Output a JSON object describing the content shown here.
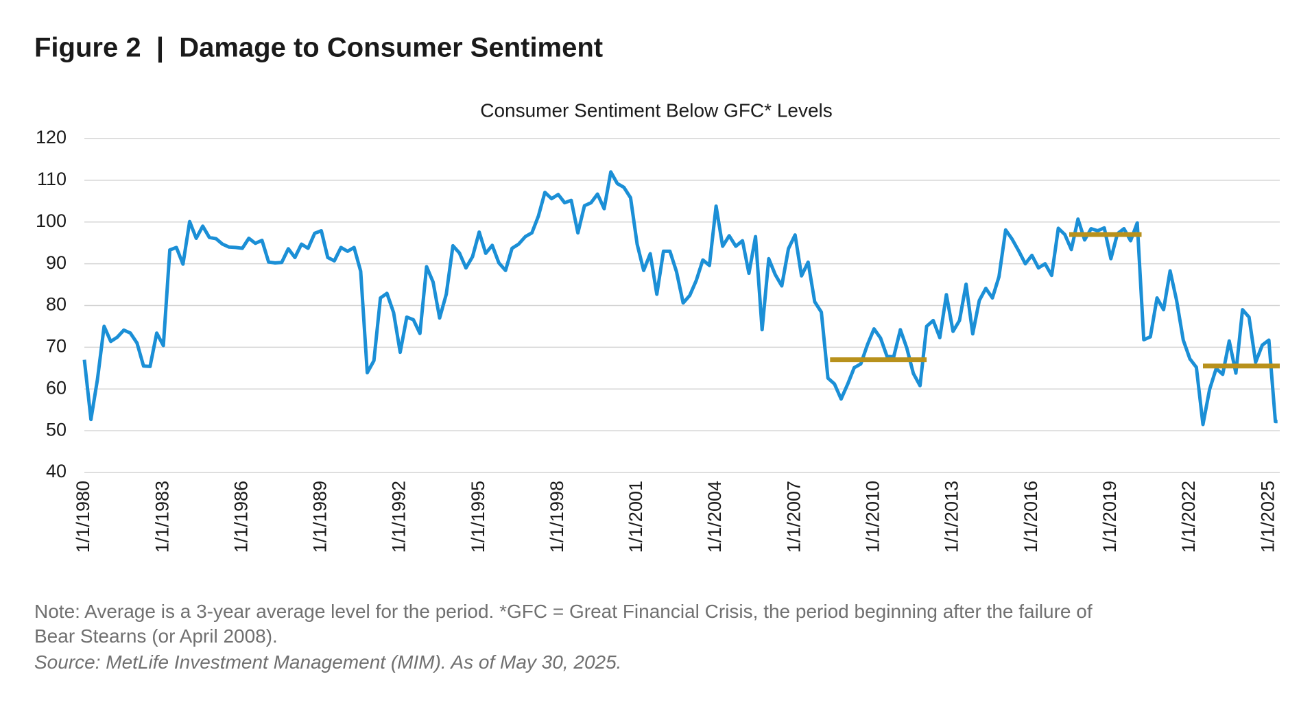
{
  "chart_data": {
    "type": "line",
    "heading": "Figure 2  |  Damage to Consumer Sentiment",
    "title": "Consumer Sentiment Below GFC* Levels",
    "notes": [
      "Note: Average is a 3-year average level for the period. *GFC = Great Financial Crisis, the period beginning after the failure of",
      "Bear Stearns (or April 2008)."
    ],
    "source": "Source: MetLife Investment Management (MIM). As of May 30, 2025.",
    "xlim": [
      "1980-01-01",
      "2025-06-01"
    ],
    "ylim": [
      40,
      120
    ],
    "yticks": [
      40,
      50,
      60,
      70,
      80,
      90,
      100,
      110,
      120
    ],
    "xticks": [
      {
        "value": "1980-01-01",
        "label": "1/1/1980"
      },
      {
        "value": "1983-01-01",
        "label": "1/1/1983"
      },
      {
        "value": "1986-01-01",
        "label": "1/1/1986"
      },
      {
        "value": "1989-01-01",
        "label": "1/1/1989"
      },
      {
        "value": "1992-01-01",
        "label": "1/1/1992"
      },
      {
        "value": "1995-01-01",
        "label": "1/1/1995"
      },
      {
        "value": "1998-01-01",
        "label": "1/1/1998"
      },
      {
        "value": "2001-01-01",
        "label": "1/1/2001"
      },
      {
        "value": "2004-01-01",
        "label": "1/1/2004"
      },
      {
        "value": "2007-01-01",
        "label": "1/1/2007"
      },
      {
        "value": "2010-01-01",
        "label": "1/1/2010"
      },
      {
        "value": "2013-01-01",
        "label": "1/1/2013"
      },
      {
        "value": "2016-01-01",
        "label": "1/1/2016"
      },
      {
        "value": "2019-01-01",
        "label": "1/1/2019"
      },
      {
        "value": "2022-01-01",
        "label": "1/1/2022"
      },
      {
        "value": "2025-01-01",
        "label": "1/1/2025"
      }
    ],
    "grid": true,
    "series": [
      {
        "color": "#1b8fd6",
        "x": [
          "1980-01-01",
          "1980-04-01",
          "1980-07-01",
          "1980-10-01",
          "1981-01-01",
          "1981-04-01",
          "1981-07-01",
          "1981-10-01",
          "1982-01-01",
          "1982-04-01",
          "1982-07-01",
          "1982-10-01",
          "1983-01-01",
          "1983-04-01",
          "1983-07-01",
          "1983-10-01",
          "1984-01-01",
          "1984-04-01",
          "1984-07-01",
          "1984-10-01",
          "1985-01-01",
          "1985-04-01",
          "1985-07-01",
          "1985-10-01",
          "1986-01-01",
          "1986-04-01",
          "1986-07-01",
          "1986-10-01",
          "1987-01-01",
          "1987-04-01",
          "1987-07-01",
          "1987-10-01",
          "1988-01-01",
          "1988-04-01",
          "1988-07-01",
          "1988-10-01",
          "1989-01-01",
          "1989-04-01",
          "1989-07-01",
          "1989-10-01",
          "1990-01-01",
          "1990-04-01",
          "1990-07-01",
          "1990-10-01",
          "1991-01-01",
          "1991-04-01",
          "1991-07-01",
          "1991-10-01",
          "1992-01-01",
          "1992-04-01",
          "1992-07-01",
          "1992-10-01",
          "1993-01-01",
          "1993-04-01",
          "1993-07-01",
          "1993-10-01",
          "1994-01-01",
          "1994-04-01",
          "1994-07-01",
          "1994-10-01",
          "1995-01-01",
          "1995-04-01",
          "1995-07-01",
          "1995-10-01",
          "1996-01-01",
          "1996-04-01",
          "1996-07-01",
          "1996-10-01",
          "1997-01-01",
          "1997-04-01",
          "1997-07-01",
          "1997-10-01",
          "1998-01-01",
          "1998-04-01",
          "1998-07-01",
          "1998-10-01",
          "1999-01-01",
          "1999-04-01",
          "1999-07-01",
          "1999-10-01",
          "2000-01-01",
          "2000-04-01",
          "2000-07-01",
          "2000-10-01",
          "2001-01-01",
          "2001-04-01",
          "2001-07-01",
          "2001-10-01",
          "2002-01-01",
          "2002-04-01",
          "2002-07-01",
          "2002-10-01",
          "2003-01-01",
          "2003-04-01",
          "2003-07-01",
          "2003-10-01",
          "2004-01-01",
          "2004-04-01",
          "2004-07-01",
          "2004-10-01",
          "2005-01-01",
          "2005-04-01",
          "2005-07-01",
          "2005-10-01",
          "2006-01-01",
          "2006-04-01",
          "2006-07-01",
          "2006-10-01",
          "2007-01-01",
          "2007-04-01",
          "2007-07-01",
          "2007-10-01",
          "2008-01-01",
          "2008-04-01",
          "2008-07-01",
          "2008-10-01",
          "2009-01-01",
          "2009-04-01",
          "2009-07-01",
          "2009-10-01",
          "2010-01-01",
          "2010-04-01",
          "2010-07-01",
          "2010-10-01",
          "2011-01-01",
          "2011-04-01",
          "2011-07-01",
          "2011-10-01",
          "2012-01-01",
          "2012-04-01",
          "2012-07-01",
          "2012-10-01",
          "2013-01-01",
          "2013-04-01",
          "2013-07-01",
          "2013-10-01",
          "2014-01-01",
          "2014-04-01",
          "2014-07-01",
          "2014-10-01",
          "2015-01-01",
          "2015-04-01",
          "2015-07-01",
          "2015-10-01",
          "2016-01-01",
          "2016-04-01",
          "2016-07-01",
          "2016-10-01",
          "2017-01-01",
          "2017-04-01",
          "2017-07-01",
          "2017-10-01",
          "2018-01-01",
          "2018-04-01",
          "2018-07-01",
          "2018-10-01",
          "2019-01-01",
          "2019-04-01",
          "2019-07-01",
          "2019-10-01",
          "2020-01-01",
          "2020-04-01",
          "2020-07-01",
          "2020-10-01",
          "2021-01-01",
          "2021-04-01",
          "2021-07-01",
          "2021-10-01",
          "2022-01-01",
          "2022-04-01",
          "2022-07-01",
          "2022-10-01",
          "2023-01-01",
          "2023-04-01",
          "2023-07-01",
          "2023-10-01",
          "2024-01-01",
          "2024-04-01",
          "2024-07-01",
          "2024-10-01",
          "2025-01-01",
          "2025-04-01",
          "2025-05-01"
        ],
        "values": [
          67.0,
          52.7,
          62.3,
          75.0,
          71.4,
          72.4,
          74.1,
          73.4,
          71.0,
          65.5,
          65.4,
          73.4,
          70.4,
          93.3,
          93.9,
          89.9,
          100.1,
          96.1,
          99.0,
          96.3,
          96.0,
          94.7,
          94.0,
          93.9,
          93.7,
          96.1,
          94.9,
          95.6,
          90.4,
          90.2,
          90.3,
          93.6,
          91.5,
          94.7,
          93.7,
          97.3,
          97.9,
          91.5,
          90.7,
          93.9,
          93.0,
          93.9,
          88.2,
          63.9,
          66.8,
          81.8,
          82.9,
          78.3,
          68.8,
          77.2,
          76.6,
          73.3,
          89.3,
          85.6,
          77.0,
          82.7,
          94.3,
          92.6,
          89.0,
          91.7,
          97.6,
          92.5,
          94.4,
          90.2,
          88.4,
          93.7,
          94.7,
          96.5,
          97.4,
          101.4,
          107.1,
          105.6,
          106.6,
          104.6,
          105.2,
          97.4,
          103.9,
          104.6,
          106.7,
          103.2,
          112.0,
          109.2,
          108.3,
          105.8,
          94.7,
          88.4,
          92.4,
          82.7,
          93.0,
          93.0,
          88.1,
          80.6,
          82.4,
          86.0,
          90.9,
          89.6,
          103.8,
          94.2,
          96.7,
          94.2,
          95.5,
          87.7,
          96.5,
          74.2,
          91.2,
          87.4,
          84.7,
          93.6,
          96.9,
          87.1,
          90.4,
          80.9,
          78.4,
          62.6,
          61.2,
          57.6,
          61.2,
          65.1,
          66.0,
          70.6,
          74.4,
          72.2,
          67.8,
          67.7,
          74.2,
          69.8,
          63.7,
          60.8,
          75.0,
          76.4,
          72.3,
          82.6,
          73.8,
          76.4,
          85.1,
          73.2,
          81.2,
          84.1,
          81.8,
          86.9,
          98.1,
          95.9,
          93.1,
          90.0,
          92.0,
          89.0,
          90.0,
          87.2,
          98.5,
          97.0,
          93.4,
          100.7,
          95.7,
          98.4,
          97.9,
          98.6,
          91.2,
          97.2,
          98.4,
          95.5,
          99.8,
          71.8,
          72.5,
          81.8,
          79.0,
          88.3,
          81.2,
          71.7,
          67.2,
          65.2,
          51.5,
          59.9,
          64.9,
          63.5,
          71.5,
          63.8,
          79.0,
          77.2,
          66.4,
          70.5,
          71.7,
          52.2,
          52.2
        ]
      },
      {
        "color": "#b8911c",
        "x": [
          "2008-05-01",
          "2012-01-01"
        ],
        "values": [
          67,
          67
        ]
      },
      {
        "color": "#b8911c",
        "x": [
          "2017-06-01",
          "2020-03-01"
        ],
        "values": [
          97,
          97
        ]
      },
      {
        "color": "#b8911c",
        "x": [
          "2022-07-01",
          "2025-06-01"
        ],
        "values": [
          65.5,
          65.5
        ]
      }
    ]
  }
}
